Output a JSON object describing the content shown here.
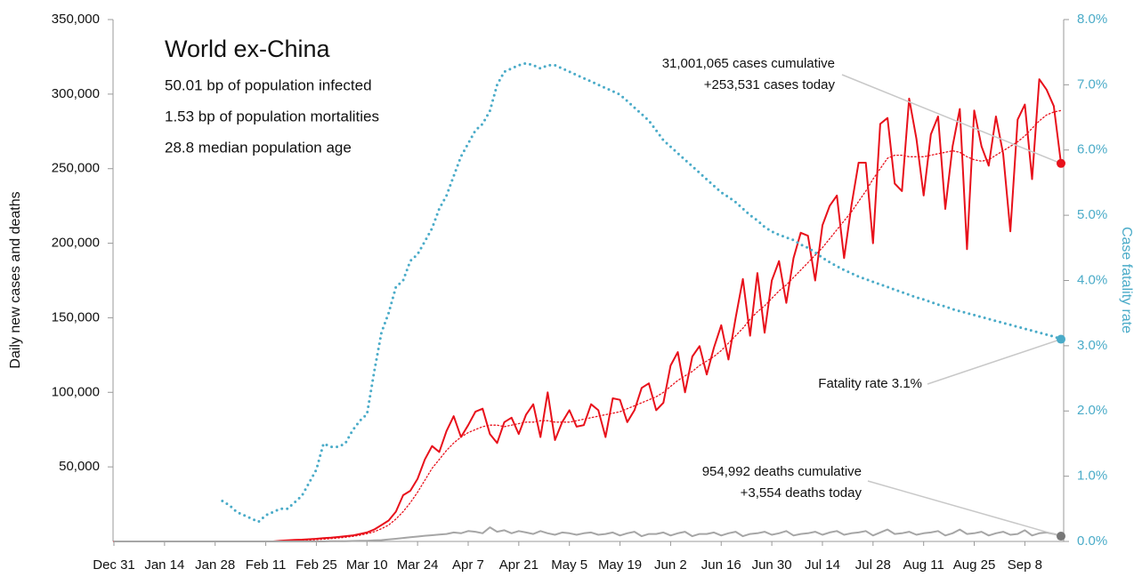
{
  "chart_data": {
    "type": "line",
    "title": "World ex-China",
    "stats": [
      "50.01 bp of population infected",
      "1.53 bp of population mortalities",
      "28.8 median population age"
    ],
    "annotations": [
      "31,001,065 cases cumulative",
      "+253,531 cases today",
      "Fatality rate 3.1%",
      "954,992 deaths cumulative",
      "+3,554 deaths today"
    ],
    "ylabel": "Daily new cases and deaths",
    "y2label": "Case fatality rate",
    "ylim": [
      0,
      350000
    ],
    "yticks": [
      {
        "value": 50000,
        "label": "50,000"
      },
      {
        "value": 100000,
        "label": "100,000"
      },
      {
        "value": 150000,
        "label": "150,000"
      },
      {
        "value": 200000,
        "label": "200,000"
      },
      {
        "value": 250000,
        "label": "250,000"
      },
      {
        "value": 300000,
        "label": "300,000"
      },
      {
        "value": 350000,
        "label": "350,000"
      }
    ],
    "y2lim": [
      0,
      8
    ],
    "y2ticks": [
      {
        "value": 0,
        "label": "0.0%"
      },
      {
        "value": 1,
        "label": "1.0%"
      },
      {
        "value": 2,
        "label": "2.0%"
      },
      {
        "value": 3,
        "label": "3.0%"
      },
      {
        "value": 4,
        "label": "4.0%"
      },
      {
        "value": 5,
        "label": "5.0%"
      },
      {
        "value": 6,
        "label": "6.0%"
      },
      {
        "value": 7,
        "label": "7.0%"
      },
      {
        "value": 8,
        "label": "8.0%"
      }
    ],
    "y2color": "#4aabc8",
    "grid": false,
    "categories": [
      "Dec 31",
      null,
      null,
      null,
      null,
      null,
      null,
      "Jan 14",
      null,
      null,
      null,
      null,
      null,
      null,
      "Jan 28",
      null,
      null,
      null,
      null,
      null,
      null,
      "Feb 11",
      null,
      null,
      null,
      null,
      null,
      null,
      "Feb 25",
      null,
      null,
      null,
      null,
      null,
      null,
      "Mar 10",
      null,
      null,
      null,
      null,
      null,
      null,
      "Mar 24",
      null,
      null,
      null,
      null,
      null,
      null,
      "Apr 7",
      null,
      null,
      null,
      null,
      null,
      null,
      "Apr 21",
      null,
      null,
      null,
      null,
      null,
      null,
      "May 5",
      null,
      null,
      null,
      null,
      null,
      null,
      "May 19",
      null,
      null,
      null,
      null,
      null,
      null,
      "Jun 2",
      null,
      null,
      null,
      null,
      null,
      null,
      "Jun 16",
      null,
      null,
      null,
      null,
      null,
      null,
      "Jun 30",
      null,
      null,
      null,
      null,
      null,
      null,
      "Jul 14",
      null,
      null,
      null,
      null,
      null,
      null,
      "Jul 28",
      null,
      null,
      null,
      null,
      null,
      null,
      "Aug 11",
      null,
      null,
      null,
      null,
      null,
      null,
      "Aug 25",
      null,
      null,
      null,
      null,
      null,
      null,
      "Sep 8",
      null,
      null,
      null,
      null,
      null
    ],
    "series": [
      {
        "color": "#e8111b",
        "style": "solid",
        "width": 2,
        "endpoint": true,
        "values": [
          0,
          0,
          0,
          0,
          0,
          0,
          0,
          0,
          0,
          0,
          0,
          0,
          0,
          0,
          0,
          0,
          0,
          0,
          0,
          0,
          0,
          0,
          0,
          500,
          800,
          1000,
          1200,
          1500,
          1800,
          2200,
          2500,
          3000,
          3500,
          4000,
          5000,
          6000,
          8000,
          11000,
          14000,
          20000,
          31000,
          34000,
          42000,
          55000,
          64000,
          60000,
          74000,
          84000,
          70000,
          78000,
          87000,
          89000,
          72000,
          66000,
          80000,
          83000,
          72000,
          85000,
          92000,
          70000,
          100000,
          68000,
          80000,
          88000,
          77000,
          78000,
          92000,
          88000,
          70000,
          96000,
          95000,
          80000,
          88000,
          103000,
          106000,
          88000,
          93000,
          118000,
          127000,
          100000,
          124000,
          131000,
          112000,
          130000,
          145000,
          122000,
          150000,
          176000,
          138000,
          180000,
          140000,
          175000,
          188000,
          160000,
          190000,
          207000,
          205000,
          175000,
          212000,
          225000,
          232000,
          190000,
          225000,
          254000,
          254000,
          200000,
          280000,
          284000,
          240000,
          235000,
          297000,
          270000,
          232000,
          273000,
          285000,
          223000,
          265000,
          290000,
          196000,
          289000,
          265000,
          252000,
          285000,
          260000,
          208000,
          283000,
          293000,
          243000,
          310000,
          303000,
          292000,
          253531
        ]
      },
      {
        "color": "#e8111b",
        "style": "dotted",
        "width": 1.3,
        "endpoint": false,
        "values": [
          0,
          0,
          0,
          0,
          0,
          0,
          0,
          0,
          0,
          0,
          0,
          0,
          0,
          0,
          0,
          0,
          0,
          0,
          0,
          0,
          0,
          0,
          0,
          0,
          0,
          500,
          700,
          900,
          1200,
          1500,
          1900,
          2300,
          2800,
          3400,
          4200,
          5200,
          6500,
          8500,
          11000,
          15000,
          20000,
          26000,
          33000,
          41000,
          49000,
          55000,
          61000,
          66000,
          70000,
          73000,
          75000,
          77000,
          78000,
          78000,
          77000,
          78000,
          79000,
          80000,
          80000,
          81000,
          81000,
          80000,
          80000,
          80000,
          81000,
          82000,
          83000,
          84000,
          85000,
          86000,
          87000,
          89000,
          91000,
          93000,
          95000,
          97000,
          100000,
          104000,
          108000,
          111000,
          114000,
          118000,
          121000,
          124000,
          128000,
          133000,
          138000,
          143000,
          149000,
          154000,
          158000,
          163000,
          168000,
          172000,
          177000,
          182000,
          187000,
          192000,
          197000,
          203000,
          209000,
          215000,
          221000,
          228000,
          235000,
          243000,
          250000,
          257000,
          259000,
          259000,
          258000,
          258000,
          258000,
          259000,
          260000,
          261000,
          262000,
          261000,
          258000,
          256000,
          255000,
          256000,
          259000,
          262000,
          265000,
          268000,
          272000,
          277000,
          282000,
          286000,
          288000,
          289000
        ]
      },
      {
        "color": "#a6a6a6",
        "style": "solid",
        "width": 2,
        "endpoint": true,
        "values": [
          0,
          0,
          0,
          0,
          0,
          0,
          0,
          0,
          0,
          0,
          0,
          0,
          0,
          0,
          0,
          0,
          0,
          0,
          0,
          0,
          0,
          0,
          0,
          0,
          0,
          0,
          0,
          0,
          0,
          0,
          100,
          150,
          200,
          300,
          400,
          500,
          700,
          900,
          1300,
          1800,
          2300,
          2800,
          3300,
          3800,
          4200,
          4600,
          5000,
          6000,
          5500,
          7000,
          6500,
          5500,
          9500,
          6500,
          7500,
          5500,
          7000,
          6000,
          5000,
          7000,
          5500,
          4500,
          6000,
          5500,
          4500,
          5500,
          6000,
          4500,
          5000,
          6000,
          4000,
          5500,
          6500,
          3500,
          5000,
          5000,
          6000,
          4000,
          5500,
          6500,
          3500,
          5000,
          5000,
          6000,
          4000,
          5500,
          6500,
          3500,
          5000,
          5500,
          6500,
          4500,
          5500,
          7000,
          4000,
          5000,
          5500,
          6500,
          4500,
          6000,
          7000,
          4500,
          5500,
          6000,
          7000,
          4000,
          6000,
          8000,
          5000,
          5500,
          6500,
          4500,
          5500,
          6000,
          7000,
          4000,
          5500,
          8000,
          5000,
          5500,
          6500,
          4000,
          5500,
          6500,
          4500,
          5000,
          7500,
          4000,
          5500,
          6000,
          5000,
          3554
        ]
      },
      {
        "color": "#4aabc8",
        "style": "dotted",
        "width": 3,
        "endpoint": true,
        "axis": "y2",
        "values": [
          null,
          null,
          null,
          null,
          null,
          null,
          null,
          null,
          null,
          null,
          null,
          null,
          null,
          null,
          null,
          0.62,
          0.55,
          0.45,
          0.4,
          0.35,
          0.3,
          0.4,
          0.45,
          0.5,
          0.5,
          0.6,
          0.7,
          0.9,
          1.1,
          1.5,
          1.45,
          1.45,
          1.5,
          1.7,
          1.85,
          1.95,
          2.6,
          3.2,
          3.5,
          3.9,
          4.0,
          4.3,
          4.4,
          4.6,
          4.8,
          5.1,
          5.3,
          5.6,
          5.9,
          6.1,
          6.3,
          6.4,
          6.6,
          7.0,
          7.2,
          7.25,
          7.3,
          7.33,
          7.3,
          7.25,
          7.3,
          7.3,
          7.25,
          7.2,
          7.15,
          7.1,
          7.05,
          7.0,
          6.95,
          6.9,
          6.85,
          6.75,
          6.65,
          6.55,
          6.45,
          6.3,
          6.15,
          6.05,
          5.95,
          5.85,
          5.75,
          5.65,
          5.55,
          5.45,
          5.35,
          5.28,
          5.2,
          5.1,
          5.0,
          4.92,
          4.82,
          4.75,
          4.7,
          4.66,
          4.62,
          4.55,
          4.5,
          4.43,
          4.35,
          4.28,
          4.22,
          4.16,
          4.11,
          4.06,
          4.02,
          3.98,
          3.94,
          3.9,
          3.86,
          3.82,
          3.78,
          3.74,
          3.71,
          3.67,
          3.63,
          3.6,
          3.56,
          3.53,
          3.5,
          3.47,
          3.44,
          3.41,
          3.38,
          3.35,
          3.32,
          3.29,
          3.26,
          3.23,
          3.2,
          3.17,
          3.14,
          3.1
        ]
      }
    ]
  }
}
